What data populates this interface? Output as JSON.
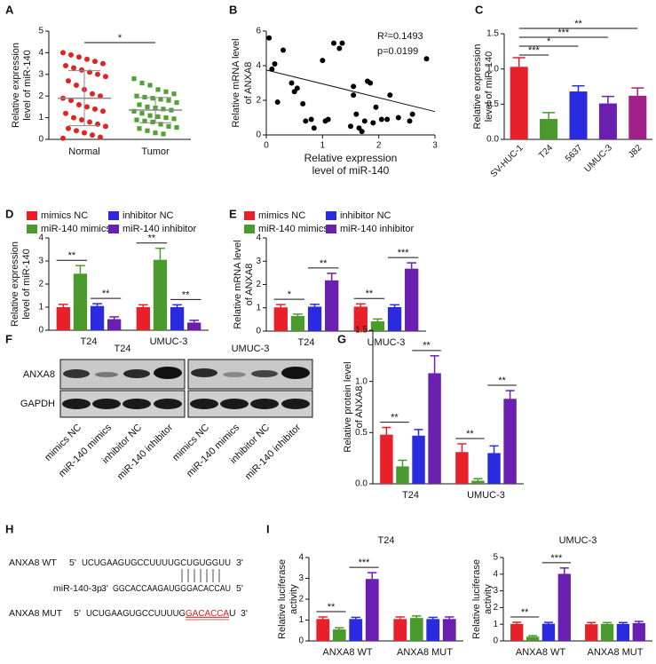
{
  "panel_labels": [
    "A",
    "B",
    "C",
    "D",
    "E",
    "F",
    "G",
    "H",
    "I"
  ],
  "chart_data": [
    {
      "type": "strip",
      "ylabel": [
        "Relative expression",
        "level of miR-140"
      ],
      "categories": [
        "Normal",
        "Tumor"
      ],
      "groups": [
        {
          "color": "#e02424",
          "values": [
            4.0,
            3.9,
            3.8,
            3.7,
            3.6,
            3.5,
            3.4,
            3.3,
            3.2,
            3.1,
            3.0,
            2.9,
            2.7,
            2.5,
            2.3,
            2.1,
            2.0,
            1.9,
            1.8,
            1.6,
            1.5,
            1.4,
            1.3,
            1.2,
            1.0,
            0.9,
            0.8,
            0.7,
            0.6,
            0.5,
            0.4,
            0.3,
            0.2,
            0.1,
            0.05
          ]
        },
        {
          "color": "#52a232",
          "values": [
            2.8,
            2.6,
            2.5,
            2.3,
            2.2,
            2.1,
            2.0,
            1.95,
            1.9,
            1.85,
            1.8,
            1.7,
            1.6,
            1.5,
            1.45,
            1.4,
            1.35,
            1.3,
            1.2,
            1.1,
            1.05,
            1.0,
            0.95,
            0.9,
            0.85,
            0.8,
            0.7,
            0.6,
            0.55,
            0.5,
            0.4,
            0.3,
            0.25
          ]
        }
      ],
      "mean": [
        1.9,
        1.35
      ],
      "sd": [
        1.27,
        0.58
      ],
      "significance": "*",
      "ylim": [
        0,
        5
      ],
      "yticks": [
        0,
        1,
        2,
        3,
        4,
        5
      ]
    },
    {
      "type": "scatter",
      "ylabel": [
        "Relative mRNA level",
        "of ANXA8"
      ],
      "xlabel": [
        "Relative expression",
        "level of miR-140"
      ],
      "annotations": [
        "R²=0.1493",
        "p=0.0199"
      ],
      "color": "#000000",
      "x": [
        0.05,
        0.1,
        0.15,
        0.2,
        0.3,
        0.45,
        0.5,
        0.55,
        0.65,
        0.7,
        0.8,
        0.85,
        1.0,
        1.05,
        1.1,
        1.2,
        1.3,
        1.35,
        1.5,
        1.55,
        1.55,
        1.6,
        1.65,
        1.7,
        1.75,
        1.8,
        1.85,
        1.9,
        1.95,
        2.05,
        2.15,
        2.2,
        2.35,
        2.55,
        2.6,
        2.85
      ],
      "y": [
        5.6,
        3.8,
        4.1,
        1.9,
        4.9,
        3.0,
        2.5,
        2.7,
        1.8,
        0.8,
        0.9,
        0.4,
        4.3,
        0.8,
        0.9,
        5.3,
        5.0,
        5.3,
        0.5,
        2.8,
        2.3,
        1.2,
        0.4,
        0.2,
        0.8,
        3.1,
        3.0,
        0.7,
        1.6,
        0.9,
        0.9,
        2.3,
        1.0,
        0.8,
        1.2,
        4.4
      ],
      "fit_intercept": 3.75,
      "fit_slope": -0.8,
      "xlim": [
        0,
        3
      ],
      "xticks": [
        0,
        1,
        2,
        3
      ],
      "ylim": [
        0,
        6
      ],
      "yticks": [
        0,
        2,
        4,
        6
      ]
    },
    {
      "type": "bar",
      "ylabel": [
        "Relative expression",
        "level of miR-140"
      ],
      "categories": [
        "SV-HUC-1",
        "T24",
        "5637",
        "UMUC-3",
        "J82"
      ],
      "values": [
        1.03,
        0.29,
        0.68,
        0.51,
        0.62
      ],
      "errors": [
        0.13,
        0.09,
        0.08,
        0.1,
        0.11
      ],
      "colors": [
        "#e8202a",
        "#4a9a2e",
        "#2a2ae0",
        "#6a1fb0",
        "#a0208a"
      ],
      "significance": [
        "***",
        "*",
        "***",
        "**"
      ],
      "ylim": [
        0,
        1.5
      ],
      "yticks": [
        {
          "value": 0,
          "label": "0.0"
        },
        {
          "value": 0.5,
          "label": "0.5"
        },
        {
          "value": 1,
          "label": "1.0"
        },
        {
          "value": 1.5,
          "label": "1.5"
        }
      ]
    },
    {
      "type": "grouped_bar",
      "ylabel": [
        "Relative expression",
        "level of miR-140"
      ],
      "categories": [
        "T24",
        "UMUC-3"
      ],
      "series": [
        {
          "name": "mimics NC",
          "color": "#e8202a",
          "values": [
            1.0,
            1.0
          ],
          "errors": [
            0.12,
            0.1
          ]
        },
        {
          "name": "miR-140 mimics",
          "color": "#4a9a2e",
          "values": [
            2.45,
            3.05
          ],
          "errors": [
            0.35,
            0.5
          ]
        },
        {
          "name": "inhibitor NC",
          "color": "#2a2ae0",
          "values": [
            1.05,
            1.0
          ],
          "errors": [
            0.1,
            0.1
          ]
        },
        {
          "name": "miR-140 inhibitor",
          "color": "#6a1fb0",
          "values": [
            0.48,
            0.33
          ],
          "errors": [
            0.1,
            0.1
          ]
        }
      ],
      "significance": [
        [
          "**",
          "**"
        ],
        [
          "**",
          "**"
        ]
      ],
      "ylim": [
        0,
        4
      ],
      "yticks": [
        0,
        1,
        2,
        3,
        4
      ]
    },
    {
      "type": "grouped_bar",
      "ylabel": [
        "Relative mRNA level",
        "of ANXA8"
      ],
      "categories": [
        "T24",
        "UMUC-3"
      ],
      "series": [
        {
          "name": "mimics NC",
          "color": "#e8202a",
          "values": [
            1.02,
            1.05
          ],
          "errors": [
            0.12,
            0.12
          ]
        },
        {
          "name": "miR-140 mimics",
          "color": "#4a9a2e",
          "values": [
            0.65,
            0.42
          ],
          "errors": [
            0.08,
            0.1
          ]
        },
        {
          "name": "inhibitor NC",
          "color": "#2a2ae0",
          "values": [
            1.05,
            1.03
          ],
          "errors": [
            0.1,
            0.1
          ]
        },
        {
          "name": "miR-140 inhibitor",
          "color": "#6a1fb0",
          "values": [
            2.18,
            2.68
          ],
          "errors": [
            0.3,
            0.25
          ]
        }
      ],
      "significance": [
        [
          "*",
          "**"
        ],
        [
          "**",
          "***"
        ]
      ],
      "ylim": [
        0,
        4
      ],
      "yticks": [
        0,
        1,
        2,
        3,
        4
      ]
    },
    {
      "type": "grouped_bar",
      "ylabel": [
        "Relative protein level",
        "of ANXA8"
      ],
      "categories": [
        "T24",
        "UMUC-3"
      ],
      "series": [
        {
          "color": "#e8202a",
          "values": [
            0.48,
            0.31
          ],
          "errors": [
            0.07,
            0.08
          ]
        },
        {
          "color": "#4a9a2e",
          "values": [
            0.17,
            0.03
          ],
          "errors": [
            0.06,
            0.02
          ]
        },
        {
          "color": "#2a2ae0",
          "values": [
            0.47,
            0.3
          ],
          "errors": [
            0.06,
            0.07
          ]
        },
        {
          "color": "#6a1fb0",
          "values": [
            1.08,
            0.83
          ],
          "errors": [
            0.17,
            0.08
          ]
        }
      ],
      "significance": [
        [
          "**",
          "**"
        ],
        [
          "**",
          "**"
        ]
      ],
      "ylim": [
        0,
        1.5
      ],
      "yticks": [
        {
          "value": 0,
          "label": "0.0"
        },
        {
          "value": 0.5,
          "label": "0.5"
        },
        {
          "value": 1,
          "label": "1.0"
        },
        {
          "value": 1.5,
          "label": "1.5"
        }
      ]
    },
    {
      "type": "grouped_bar",
      "title": "T24",
      "ylabel": [
        "Relative luciferase",
        "activity"
      ],
      "categories": [
        "ANXA8 WT",
        "ANXA8 MUT"
      ],
      "series": [
        {
          "color": "#e8202a",
          "values": [
            1.05,
            1.05
          ],
          "errors": [
            0.1,
            0.1
          ]
        },
        {
          "color": "#4a9a2e",
          "values": [
            0.55,
            1.1
          ],
          "errors": [
            0.08,
            0.1
          ]
        },
        {
          "color": "#2a2ae0",
          "values": [
            1.05,
            1.05
          ],
          "errors": [
            0.08,
            0.08
          ]
        },
        {
          "color": "#6a1fb0",
          "values": [
            2.97,
            1.05
          ],
          "errors": [
            0.3,
            0.1
          ]
        }
      ],
      "significance": [
        [
          "**",
          "***"
        ],
        []
      ],
      "ylim": [
        0,
        4
      ],
      "yticks": [
        0,
        1,
        2,
        3,
        4
      ]
    },
    {
      "type": "grouped_bar",
      "title": "UMUC-3",
      "ylabel": [
        "Relative luciferase",
        "activity"
      ],
      "categories": [
        "ANXA8 WT",
        "ANXA8 MUT"
      ],
      "series": [
        {
          "color": "#e8202a",
          "values": [
            1.02,
            1.0
          ],
          "errors": [
            0.1,
            0.1
          ]
        },
        {
          "color": "#4a9a2e",
          "values": [
            0.25,
            1.02
          ],
          "errors": [
            0.06,
            0.08
          ]
        },
        {
          "color": "#2a2ae0",
          "values": [
            1.03,
            1.02
          ],
          "errors": [
            0.08,
            0.08
          ]
        },
        {
          "color": "#6a1fb0",
          "values": [
            4.02,
            1.07
          ],
          "errors": [
            0.35,
            0.1
          ]
        }
      ],
      "significance": [
        [
          "**",
          "***"
        ],
        []
      ],
      "ylim": [
        0,
        5
      ],
      "yticks": [
        0,
        1,
        2,
        3,
        4,
        5
      ]
    }
  ],
  "blot": {
    "cell_lines": [
      "T24",
      "UMUC-3"
    ],
    "rows": [
      "ANXA8",
      "GAPDH"
    ],
    "lanes": [
      "mimics NC",
      "miR-140 mimics",
      "inhibitor NC",
      "miR-140 inhibitor"
    ]
  },
  "sequences": {
    "wt": {
      "name": "ANXA8  WT",
      "five": "5'",
      "seq": "UCUGAAGUGCCUUUUGCUGUGGUU",
      "three": "3'"
    },
    "mirna": {
      "name": "miR-140-3p",
      "three": "3'",
      "seq": "GGCACCAAGAUGGGACACCAU",
      "five": "5'"
    },
    "mut": {
      "name": "ANXA8  MUT",
      "five": "5'",
      "seq": "UCUGAAGUGCCUUUUG",
      "mutated": "GACACCA",
      "seq_end": "U",
      "three": "3'"
    }
  }
}
